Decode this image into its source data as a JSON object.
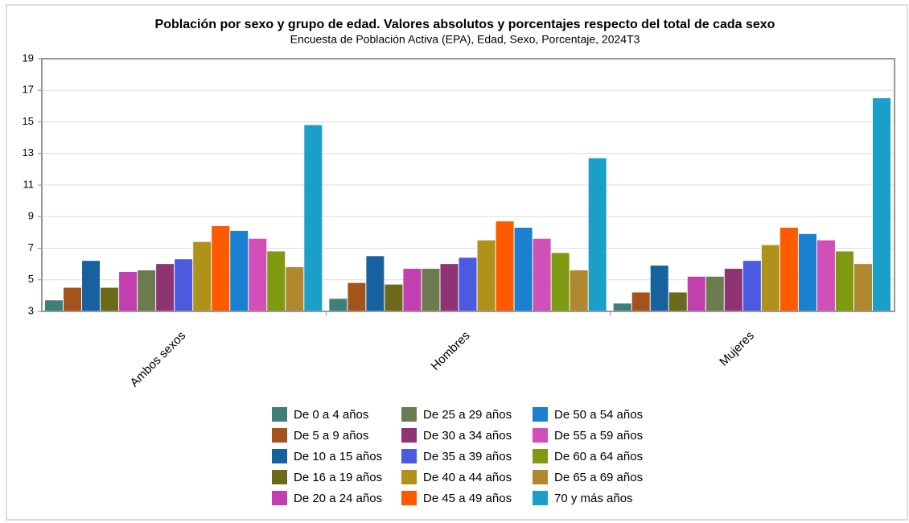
{
  "chart_data": {
    "type": "bar",
    "title": "Población por sexo y grupo de edad. Valores absolutos y porcentajes respecto del total de cada sexo",
    "subtitle": "Encuesta de Población Activa (EPA), Edad, Sexo, Porcentaje, 2024T3",
    "categories": [
      "Ambos sexos",
      "Hombres",
      "Mujeres"
    ],
    "series": [
      {
        "name": "De 0 a 4 años",
        "color": "#3f7f7a",
        "values": [
          3.7,
          3.8,
          3.5
        ]
      },
      {
        "name": "De 5 a 9 años",
        "color": "#a3531b",
        "values": [
          4.5,
          4.8,
          4.2
        ]
      },
      {
        "name": "De 10 a 15 años",
        "color": "#17629e",
        "values": [
          6.2,
          6.5,
          5.9
        ]
      },
      {
        "name": "De 16 a 19 años",
        "color": "#6b6a18",
        "values": [
          4.5,
          4.7,
          4.2
        ]
      },
      {
        "name": "De 20 a 24 años",
        "color": "#c23fb0",
        "values": [
          5.5,
          5.7,
          5.2
        ]
      },
      {
        "name": "De 25 a 29 años",
        "color": "#6b7b4f",
        "values": [
          5.6,
          5.7,
          5.2
        ]
      },
      {
        "name": "De 30 a 34 años",
        "color": "#8e3473",
        "values": [
          6.0,
          6.0,
          5.7
        ]
      },
      {
        "name": "De 35 a 39 años",
        "color": "#4a5be0",
        "values": [
          6.3,
          6.4,
          6.2
        ]
      },
      {
        "name": "De 40 a 44 años",
        "color": "#b0921a",
        "values": [
          7.4,
          7.5,
          7.2
        ]
      },
      {
        "name": "De 45 a 49 años",
        "color": "#ff5a00",
        "values": [
          8.4,
          8.7,
          8.3
        ]
      },
      {
        "name": "De 50 a 54 años",
        "color": "#1a80d0",
        "values": [
          8.1,
          8.3,
          7.9
        ]
      },
      {
        "name": "De 55 a 59 años",
        "color": "#d04fb8",
        "values": [
          7.6,
          7.6,
          7.5
        ]
      },
      {
        "name": "De 60 a 64 años",
        "color": "#7f9a10",
        "values": [
          6.8,
          6.7,
          6.8
        ]
      },
      {
        "name": "De 65 a 69 años",
        "color": "#b08830",
        "values": [
          5.8,
          5.6,
          6.0
        ]
      },
      {
        "name": "70 y más años",
        "color": "#1aa0c8",
        "values": [
          14.8,
          12.7,
          16.5
        ]
      }
    ],
    "ylim": [
      3,
      19
    ],
    "yticks": [
      3,
      5,
      7,
      9,
      11,
      13,
      15,
      17,
      19
    ],
    "grid": true,
    "legend": "bottom"
  }
}
